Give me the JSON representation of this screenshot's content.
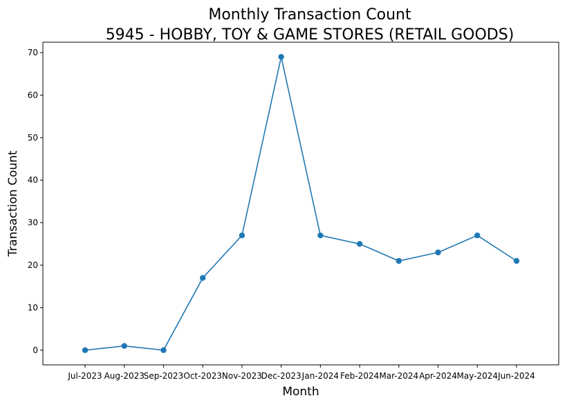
{
  "chart_data": {
    "type": "line",
    "title": "Monthly Transaction Count",
    "subtitle": "5945 - HOBBY, TOY & GAME STORES (RETAIL GOODS)",
    "xlabel": "Month",
    "ylabel": "Transaction Count",
    "categories": [
      "Jul-2023",
      "Aug-2023",
      "Sep-2023",
      "Oct-2023",
      "Nov-2023",
      "Dec-2023",
      "Jan-2024",
      "Feb-2024",
      "Mar-2024",
      "Apr-2024",
      "May-2024",
      "Jun-2024"
    ],
    "series": [
      {
        "values": [
          0,
          1,
          0,
          17,
          27,
          69,
          27,
          25,
          21,
          23,
          27,
          21
        ],
        "color": "#1f77b4",
        "marker": "circle"
      }
    ],
    "ylim": [
      -3.45,
      72.45
    ],
    "yticks": [
      0,
      10,
      20,
      30,
      40,
      50,
      60,
      70
    ],
    "grid": false,
    "legend": "none"
  }
}
